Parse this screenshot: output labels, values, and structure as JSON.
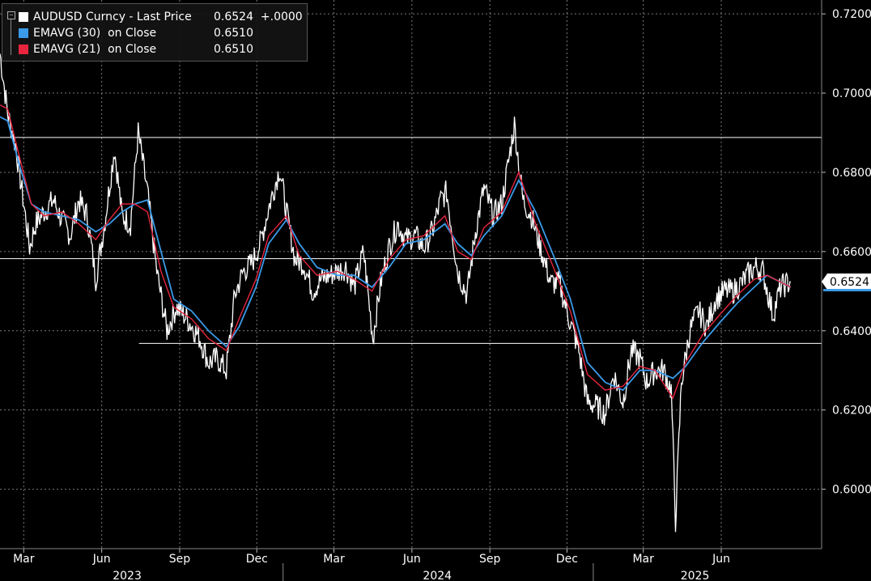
{
  "legend": {
    "rows": [
      {
        "label": "AUDUSD Curncy - Last Price",
        "value": "0.6524  +.0000",
        "color": "#ffffff"
      },
      {
        "label": "EMAVG (30)  on Close",
        "value": "0.6510",
        "color": "#3a9ae8"
      },
      {
        "label": "EMAVG (21)  on Close",
        "value": "0.6510",
        "color": "#e8253f"
      }
    ]
  },
  "last_price_tag": "0.6524",
  "chart_data": {
    "type": "line",
    "ylim": [
      0.585,
      0.7235
    ],
    "y_ticks": [
      "0.7200",
      "0.7000",
      "0.6800",
      "0.6600",
      "0.6400",
      "0.6200",
      "0.6000"
    ],
    "y_tick_values": [
      0.72,
      0.7,
      0.68,
      0.66,
      0.64,
      0.62,
      0.6
    ],
    "x_tick_labels": [
      "Mar",
      "Jun",
      "Sep",
      "Dec",
      "Mar",
      "Jun",
      "Sep",
      "Dec",
      "Mar",
      "Jun"
    ],
    "x_tick_dates": [
      "2023-03-01",
      "2023-06-01",
      "2023-09-01",
      "2023-12-01",
      "2024-03-01",
      "2024-06-01",
      "2024-09-01",
      "2024-12-01",
      "2025-03-01",
      "2025-06-01"
    ],
    "years": [
      "2023",
      "2024",
      "2025"
    ],
    "year_dates": [
      "2023-07-01",
      "2024-07-01",
      "2025-05-01"
    ],
    "year_separators": [
      "2024-01-01",
      "2025-01-01"
    ],
    "x_range": [
      "2023-02-01",
      "2025-08-25"
    ],
    "horizontal_lines": [
      {
        "y": 0.6888,
        "from": "2023-02-01"
      },
      {
        "y": 0.6582,
        "from": "2023-02-01"
      },
      {
        "y": 0.6368,
        "from": "2023-07-15"
      }
    ],
    "colors": {
      "price": "#ffffff",
      "ema30": "#3a9ae8",
      "ema21": "#e8253f",
      "grid": "#7a7a7a",
      "level": "#ffffff"
    },
    "series": [
      {
        "name": "AUDUSD Curncy - Last Price",
        "kind": "price",
        "points": [
          [
            "2023-02-01",
            0.71
          ],
          [
            "2023-02-10",
            0.695
          ],
          [
            "2023-02-20",
            0.686
          ],
          [
            "2023-03-01",
            0.672
          ],
          [
            "2023-03-08",
            0.661
          ],
          [
            "2023-03-15",
            0.667
          ],
          [
            "2023-03-25",
            0.67
          ],
          [
            "2023-04-05",
            0.673
          ],
          [
            "2023-04-15",
            0.668
          ],
          [
            "2023-04-25",
            0.664
          ],
          [
            "2023-05-05",
            0.673
          ],
          [
            "2023-05-15",
            0.669
          ],
          [
            "2023-05-25",
            0.653
          ],
          [
            "2023-06-05",
            0.668
          ],
          [
            "2023-06-16",
            0.686
          ],
          [
            "2023-06-25",
            0.669
          ],
          [
            "2023-07-05",
            0.667
          ],
          [
            "2023-07-14",
            0.69
          ],
          [
            "2023-07-25",
            0.675
          ],
          [
            "2023-08-05",
            0.655
          ],
          [
            "2023-08-17",
            0.64
          ],
          [
            "2023-08-28",
            0.646
          ],
          [
            "2023-09-10",
            0.643
          ],
          [
            "2023-09-25",
            0.638
          ],
          [
            "2023-10-05",
            0.632
          ],
          [
            "2023-10-15",
            0.633
          ],
          [
            "2023-10-26",
            0.63
          ],
          [
            "2023-11-05",
            0.649
          ],
          [
            "2023-11-15",
            0.655
          ],
          [
            "2023-11-25",
            0.657
          ],
          [
            "2023-12-05",
            0.662
          ],
          [
            "2023-12-15",
            0.671
          ],
          [
            "2023-12-28",
            0.681
          ],
          [
            "2024-01-05",
            0.67
          ],
          [
            "2024-01-15",
            0.658
          ],
          [
            "2024-01-25",
            0.657
          ],
          [
            "2024-02-05",
            0.65
          ],
          [
            "2024-02-15",
            0.653
          ],
          [
            "2024-02-25",
            0.654
          ],
          [
            "2024-03-05",
            0.655
          ],
          [
            "2024-03-15",
            0.656
          ],
          [
            "2024-03-25",
            0.651
          ],
          [
            "2024-04-05",
            0.66
          ],
          [
            "2024-04-16",
            0.638
          ],
          [
            "2024-04-25",
            0.652
          ],
          [
            "2024-05-05",
            0.661
          ],
          [
            "2024-05-15",
            0.667
          ],
          [
            "2024-05-25",
            0.663
          ],
          [
            "2024-06-05",
            0.664
          ],
          [
            "2024-06-15",
            0.661
          ],
          [
            "2024-06-25",
            0.665
          ],
          [
            "2024-07-05",
            0.673
          ],
          [
            "2024-07-12",
            0.675
          ],
          [
            "2024-07-25",
            0.655
          ],
          [
            "2024-08-05",
            0.649
          ],
          [
            "2024-08-15",
            0.665
          ],
          [
            "2024-08-25",
            0.676
          ],
          [
            "2024-09-05",
            0.669
          ],
          [
            "2024-09-15",
            0.672
          ],
          [
            "2024-09-30",
            0.692
          ],
          [
            "2024-10-10",
            0.673
          ],
          [
            "2024-10-20",
            0.669
          ],
          [
            "2024-11-01",
            0.66
          ],
          [
            "2024-11-12",
            0.652
          ],
          [
            "2024-11-22",
            0.652
          ],
          [
            "2024-12-05",
            0.642
          ],
          [
            "2024-12-15",
            0.635
          ],
          [
            "2024-12-25",
            0.622
          ],
          [
            "2025-01-05",
            0.621
          ],
          [
            "2025-01-15",
            0.619
          ],
          [
            "2025-01-25",
            0.629
          ],
          [
            "2025-02-05",
            0.622
          ],
          [
            "2025-02-15",
            0.635
          ],
          [
            "2025-02-25",
            0.633
          ],
          [
            "2025-03-05",
            0.627
          ],
          [
            "2025-03-15",
            0.63
          ],
          [
            "2025-03-25",
            0.63
          ],
          [
            "2025-04-03",
            0.625
          ],
          [
            "2025-04-08",
            0.592
          ],
          [
            "2025-04-15",
            0.627
          ],
          [
            "2025-04-25",
            0.64
          ],
          [
            "2025-05-05",
            0.645
          ],
          [
            "2025-05-15",
            0.641
          ],
          [
            "2025-05-25",
            0.648
          ],
          [
            "2025-06-05",
            0.65
          ],
          [
            "2025-06-15",
            0.65
          ],
          [
            "2025-06-25",
            0.652
          ],
          [
            "2025-07-05",
            0.655
          ],
          [
            "2025-07-12",
            0.656
          ],
          [
            "2025-07-20",
            0.655
          ],
          [
            "2025-08-01",
            0.644
          ],
          [
            "2025-08-10",
            0.651
          ],
          [
            "2025-08-22",
            0.6524
          ]
        ]
      },
      {
        "name": "EMAVG (30) on Close",
        "kind": "ema30",
        "points": [
          [
            "2023-02-01",
            0.694
          ],
          [
            "2023-02-10",
            0.693
          ],
          [
            "2023-02-25",
            0.681
          ],
          [
            "2023-03-10",
            0.672
          ],
          [
            "2023-03-25",
            0.67
          ],
          [
            "2023-04-15",
            0.669
          ],
          [
            "2023-05-05",
            0.668
          ],
          [
            "2023-05-25",
            0.665
          ],
          [
            "2023-06-10",
            0.667
          ],
          [
            "2023-06-25",
            0.67
          ],
          [
            "2023-07-10",
            0.672
          ],
          [
            "2023-07-25",
            0.673
          ],
          [
            "2023-08-10",
            0.66
          ],
          [
            "2023-08-25",
            0.648
          ],
          [
            "2023-09-15",
            0.645
          ],
          [
            "2023-10-05",
            0.64
          ],
          [
            "2023-10-26",
            0.636
          ],
          [
            "2023-11-10",
            0.641
          ],
          [
            "2023-11-30",
            0.651
          ],
          [
            "2023-12-15",
            0.662
          ],
          [
            "2024-01-05",
            0.668
          ],
          [
            "2024-01-20",
            0.662
          ],
          [
            "2024-02-10",
            0.656
          ],
          [
            "2024-03-05",
            0.654
          ],
          [
            "2024-03-25",
            0.654
          ],
          [
            "2024-04-15",
            0.651
          ],
          [
            "2024-05-05",
            0.656
          ],
          [
            "2024-05-25",
            0.662
          ],
          [
            "2024-06-15",
            0.663
          ],
          [
            "2024-07-10",
            0.667
          ],
          [
            "2024-07-25",
            0.662
          ],
          [
            "2024-08-10",
            0.659
          ],
          [
            "2024-08-25",
            0.664
          ],
          [
            "2024-09-15",
            0.669
          ],
          [
            "2024-10-05",
            0.678
          ],
          [
            "2024-10-25",
            0.67
          ],
          [
            "2024-11-15",
            0.659
          ],
          [
            "2024-12-05",
            0.648
          ],
          [
            "2024-12-25",
            0.632
          ],
          [
            "2025-01-15",
            0.627
          ],
          [
            "2025-02-05",
            0.625
          ],
          [
            "2025-02-25",
            0.63
          ],
          [
            "2025-03-15",
            0.63
          ],
          [
            "2025-04-05",
            0.628
          ],
          [
            "2025-04-20",
            0.631
          ],
          [
            "2025-05-10",
            0.637
          ],
          [
            "2025-05-30",
            0.642
          ],
          [
            "2025-06-20",
            0.647
          ],
          [
            "2025-07-10",
            0.651
          ],
          [
            "2025-07-25",
            0.654
          ],
          [
            "2025-08-22",
            0.651
          ]
        ]
      },
      {
        "name": "EMAVG (21) on Close",
        "kind": "ema21",
        "points": [
          [
            "2023-02-01",
            0.697
          ],
          [
            "2023-02-10",
            0.696
          ],
          [
            "2023-02-25",
            0.683
          ],
          [
            "2023-03-10",
            0.672
          ],
          [
            "2023-03-25",
            0.669
          ],
          [
            "2023-04-15",
            0.67
          ],
          [
            "2023-05-05",
            0.667
          ],
          [
            "2023-05-25",
            0.663
          ],
          [
            "2023-06-10",
            0.668
          ],
          [
            "2023-06-25",
            0.672
          ],
          [
            "2023-07-10",
            0.672
          ],
          [
            "2023-07-25",
            0.67
          ],
          [
            "2023-08-10",
            0.655
          ],
          [
            "2023-08-25",
            0.646
          ],
          [
            "2023-09-15",
            0.643
          ],
          [
            "2023-10-05",
            0.638
          ],
          [
            "2023-10-26",
            0.635
          ],
          [
            "2023-11-10",
            0.643
          ],
          [
            "2023-11-30",
            0.653
          ],
          [
            "2023-12-15",
            0.664
          ],
          [
            "2024-01-05",
            0.669
          ],
          [
            "2024-01-20",
            0.659
          ],
          [
            "2024-02-10",
            0.654
          ],
          [
            "2024-03-05",
            0.655
          ],
          [
            "2024-03-25",
            0.653
          ],
          [
            "2024-04-15",
            0.65
          ],
          [
            "2024-05-05",
            0.658
          ],
          [
            "2024-05-25",
            0.663
          ],
          [
            "2024-06-15",
            0.664
          ],
          [
            "2024-07-10",
            0.669
          ],
          [
            "2024-07-25",
            0.66
          ],
          [
            "2024-08-10",
            0.658
          ],
          [
            "2024-08-25",
            0.666
          ],
          [
            "2024-09-15",
            0.67
          ],
          [
            "2024-10-05",
            0.68
          ],
          [
            "2024-10-25",
            0.667
          ],
          [
            "2024-11-15",
            0.656
          ],
          [
            "2024-12-05",
            0.645
          ],
          [
            "2024-12-25",
            0.629
          ],
          [
            "2025-01-15",
            0.625
          ],
          [
            "2025-02-05",
            0.626
          ],
          [
            "2025-02-25",
            0.631
          ],
          [
            "2025-03-15",
            0.63
          ],
          [
            "2025-04-05",
            0.623
          ],
          [
            "2025-04-20",
            0.632
          ],
          [
            "2025-05-10",
            0.639
          ],
          [
            "2025-05-30",
            0.644
          ],
          [
            "2025-06-20",
            0.649
          ],
          [
            "2025-07-10",
            0.653
          ],
          [
            "2025-07-25",
            0.654
          ],
          [
            "2025-08-22",
            0.651
          ]
        ]
      }
    ]
  }
}
